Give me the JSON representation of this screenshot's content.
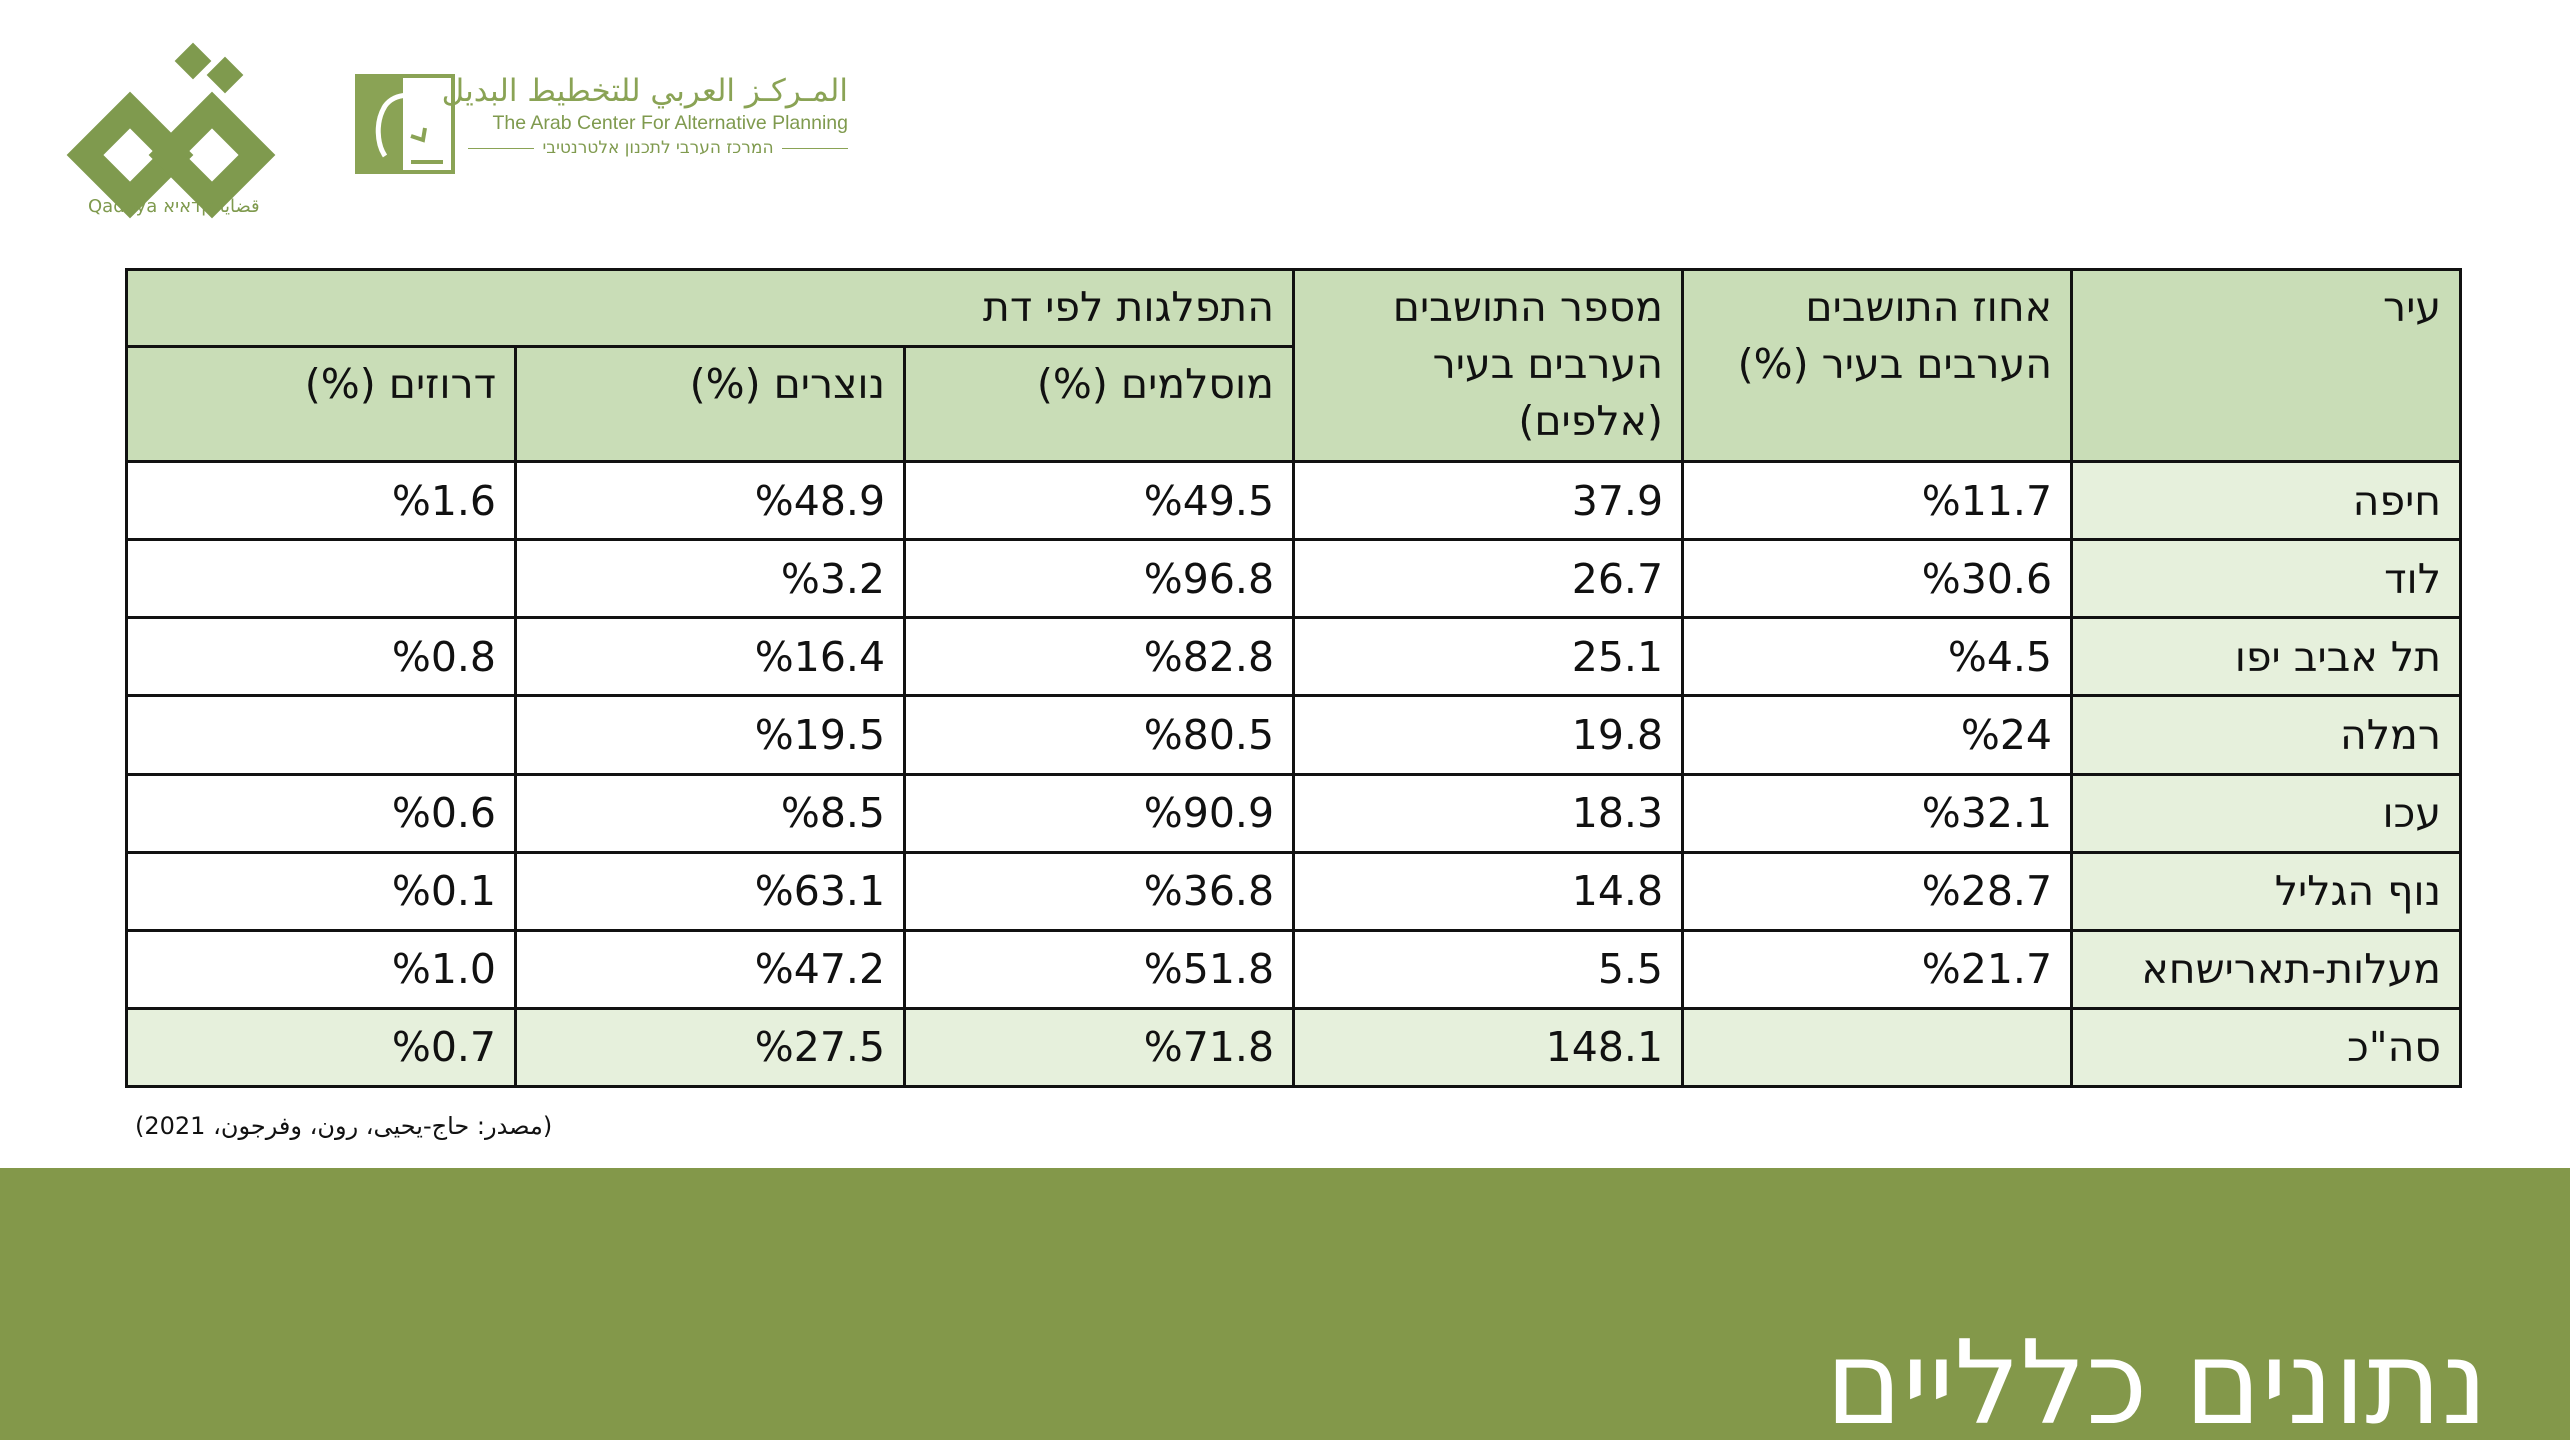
{
  "logos": {
    "qadaya_caption": "Qadaya قضايا קדאיא",
    "acap_arabic": "المـركـز العربي للتخطيط البديل",
    "acap_english": "The Arab Center For Alternative Planning",
    "acap_hebrew": "המרכז הערבי לתכנון אלטרנטיבי"
  },
  "table": {
    "headers": {
      "city": "עיר",
      "arab_percent": "אחוז התושבים הערבים בעיר (%)",
      "arab_count": "מספר התושבים הערבים בעיר (אלפים)",
      "religion_group": "התפלגות לפי דת",
      "muslims": "מוסלמים (%)",
      "christians": "נוצרים (%)",
      "druze": "דרוזים (%)"
    },
    "rows": [
      {
        "city": "חיפה",
        "arab_percent": "%11.7",
        "arab_count": "37.9",
        "muslims": "%49.5",
        "christians": "%48.9",
        "druze": "%1.6"
      },
      {
        "city": "לוד",
        "arab_percent": "%30.6",
        "arab_count": "26.7",
        "muslims": "%96.8",
        "christians": "%3.2",
        "druze": ""
      },
      {
        "city": "תל אביב יפו",
        "arab_percent": "%4.5",
        "arab_count": "25.1",
        "muslims": "%82.8",
        "christians": "%16.4",
        "druze": "%0.8"
      },
      {
        "city": "רמלה",
        "arab_percent": "%24",
        "arab_count": "19.8",
        "muslims": "%80.5",
        "christians": "%19.5",
        "druze": ""
      },
      {
        "city": "עכו",
        "arab_percent": "%32.1",
        "arab_count": "18.3",
        "muslims": "%90.9",
        "christians": "%8.5",
        "druze": "%0.6"
      },
      {
        "city": "נוף הגליל",
        "arab_percent": "%28.7",
        "arab_count": "14.8",
        "muslims": "%36.8",
        "christians": "%63.1",
        "druze": "%0.1"
      },
      {
        "city": "מעלות-תארישחא",
        "arab_percent": "%21.7",
        "arab_count": "5.5",
        "muslims": "%51.8",
        "christians": "%47.2",
        "druze": "%1.0"
      }
    ],
    "total": {
      "city": "סה\"כ",
      "arab_percent": "",
      "arab_count": "148.1",
      "muslims": "%71.8",
      "christians": "%27.5",
      "druze": "%0.7"
    }
  },
  "source": "(مصدر: حاج-يحيى، رون، وفرجون، 2021)",
  "footer": {
    "title": "נתונים כלליים"
  },
  "colors": {
    "header_fill": "#c9ddb7",
    "city_fill": "#e6f0dc",
    "band": "#83984a",
    "logo_green": "#7f9a4e"
  }
}
